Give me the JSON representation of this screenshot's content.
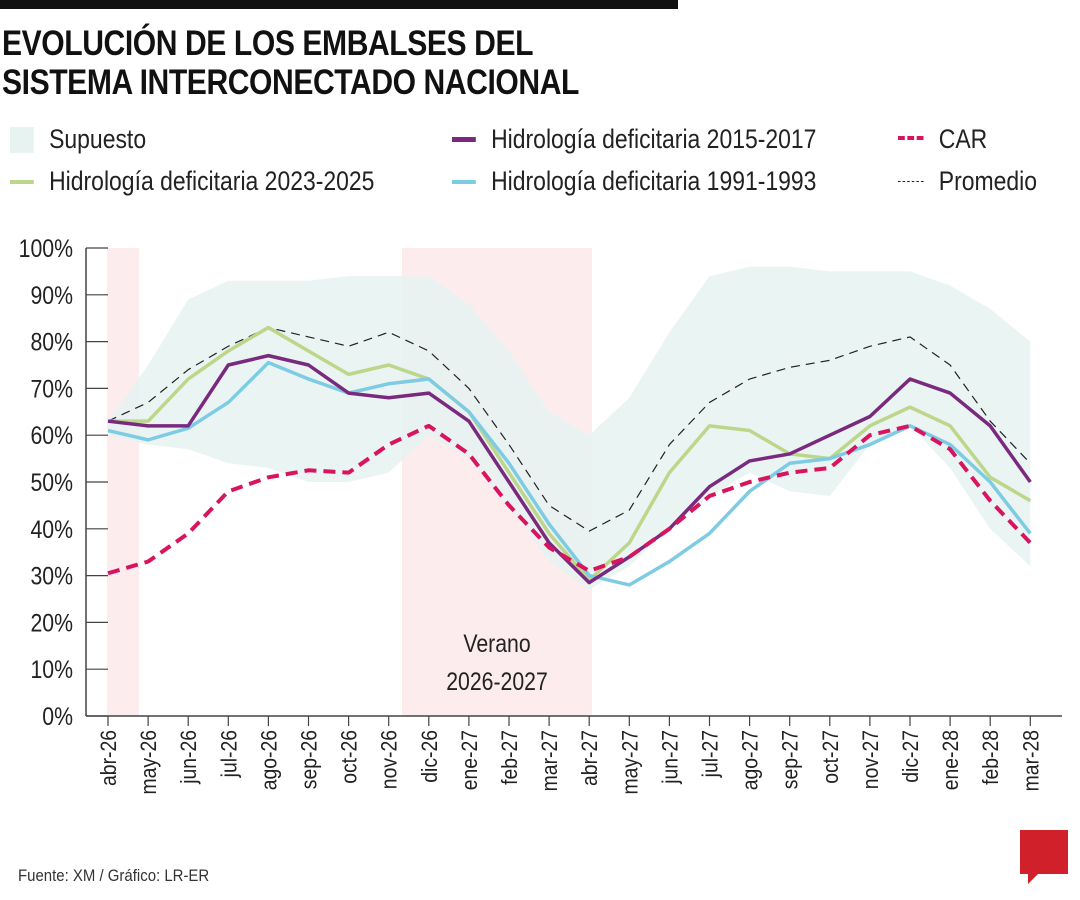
{
  "title_line1": "EVOLUCIÓN DE LOS EMBALSES DEL",
  "title_line2": "SISTEMA INTERCONECTADO NACIONAL",
  "legend": {
    "supuesto": "Supuesto",
    "h2015": "Hidrología deficitaria 2015-2017",
    "car": "CAR",
    "h2023": "Hidrología deficitaria 2023-2025",
    "h1991": "Hidrología deficitaria 1991-1993",
    "promedio": "Promedio"
  },
  "source": "Fuente: XM / Gráfico: LR-ER",
  "logo": "LR",
  "chart_data": {
    "type": "line",
    "title": "EVOLUCIÓN DE LOS EMBALSES DEL SISTEMA INTERCONECTADO NACIONAL",
    "ylim": [
      0,
      100
    ],
    "yticks": [
      "0%",
      "10%",
      "20%",
      "30%",
      "40%",
      "50%",
      "60%",
      "70%",
      "80%",
      "90%",
      "100%"
    ],
    "categories": [
      "abr-26",
      "may-26",
      "jun-26",
      "jul-26",
      "ago-26",
      "sep-26",
      "oct-26",
      "nov-26",
      "dic-26",
      "ene-27",
      "feb-27",
      "mar-27",
      "abr-27",
      "may-27",
      "jun-27",
      "jul-27",
      "ago-27",
      "sep-27",
      "oct-27",
      "nov-27",
      "dic-27",
      "ene-28",
      "feb-28",
      "mar-28"
    ],
    "band": {
      "name": "Supuesto",
      "color": "#e6f3f1",
      "upper": [
        63,
        75,
        89,
        93,
        93,
        93,
        94,
        94,
        94,
        88,
        78,
        65,
        60,
        68,
        82,
        94,
        96,
        96,
        95,
        95,
        95,
        92,
        87,
        80
      ],
      "lower": [
        60,
        58,
        57,
        54,
        53,
        50,
        50,
        52,
        60,
        55,
        45,
        33,
        27,
        32,
        40,
        47,
        52,
        48,
        47,
        58,
        62,
        53,
        40,
        32
      ]
    },
    "series": [
      {
        "name": "Promedio",
        "color": "#222222",
        "style": "dashed-thin",
        "values": [
          63,
          67,
          74,
          79,
          83,
          81,
          79,
          82,
          78,
          70,
          58,
          45,
          39.5,
          44,
          58,
          67,
          72,
          74.5,
          76,
          79,
          81,
          75,
          63,
          54
        ]
      },
      {
        "name": "Hidrología deficitaria 2023-2025",
        "color": "#bcd68a",
        "style": "solid",
        "values": [
          63,
          63,
          72,
          78,
          83,
          78,
          73,
          75,
          72,
          65,
          52,
          39,
          29,
          37,
          52,
          62,
          61,
          56,
          55,
          62,
          66,
          62,
          51,
          46
        ]
      },
      {
        "name": "Hidrología deficitaria 1991-1993",
        "color": "#7ecbe4",
        "style": "solid",
        "values": [
          61,
          59,
          61.5,
          67,
          75.5,
          72,
          69,
          71,
          72,
          65,
          54,
          41,
          30,
          28,
          33,
          39,
          48,
          54,
          55,
          58,
          62,
          58,
          50,
          39
        ]
      },
      {
        "name": "Hidrología deficitaria 2015-2017",
        "color": "#7a2a7e",
        "style": "solid",
        "values": [
          63,
          62,
          62,
          75,
          77,
          75,
          69,
          68,
          69,
          63,
          50,
          37,
          28.5,
          34,
          40,
          49,
          54.5,
          56,
          60,
          64,
          72,
          69,
          62,
          50
        ]
      },
      {
        "name": "CAR",
        "color": "#d8145f",
        "style": "dashed-thick",
        "values": [
          30.5,
          33,
          39,
          48,
          51,
          52.5,
          52,
          58,
          62,
          56,
          45,
          36,
          31,
          34,
          40,
          47,
          50,
          52,
          53,
          60,
          62,
          57,
          46,
          37
        ]
      }
    ],
    "shaded_periods": [
      {
        "start": "abr-26",
        "end": "may-26",
        "label": ""
      },
      {
        "start": "nov-26",
        "end": "abr-27",
        "label_line1": "Verano",
        "label_line2": "2026-2027"
      }
    ]
  }
}
